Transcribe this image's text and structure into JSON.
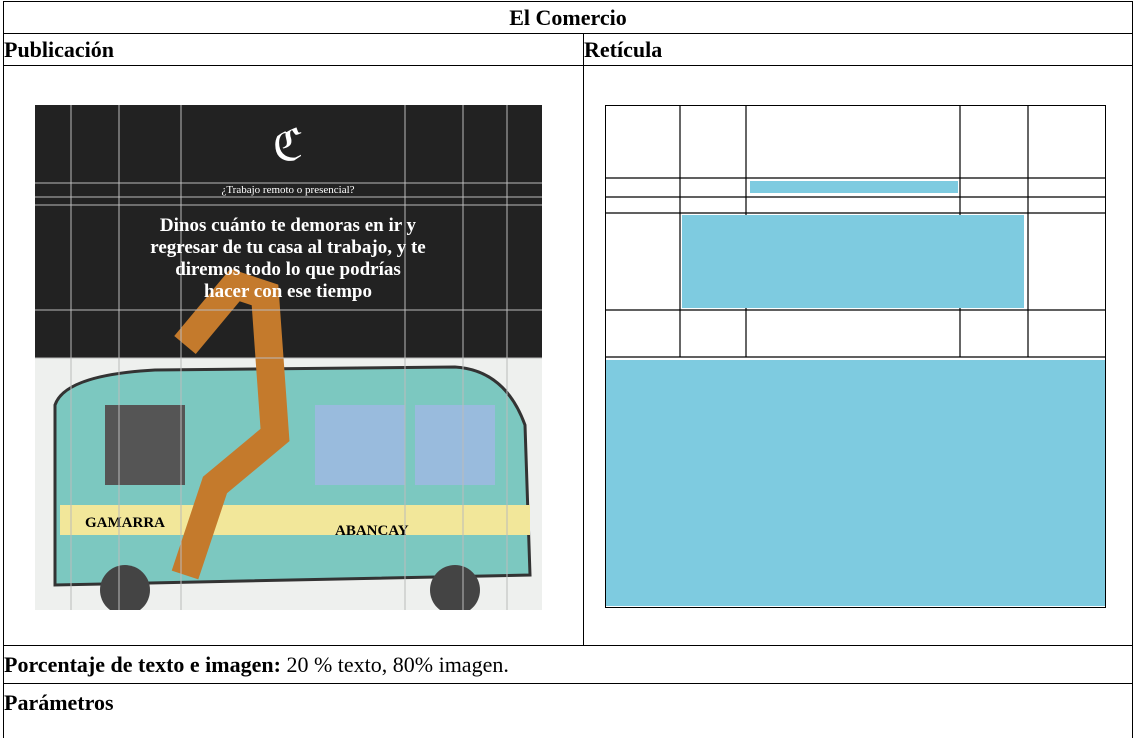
{
  "table": {
    "title": "El Comercio",
    "headers": [
      "Publicación",
      "Retícula"
    ],
    "publication": {
      "kicker": "¿Trabajo remoto o presencial?",
      "headline": [
        "Dinos cuánto te demoras en ir y",
        "regresar de tu casa al trabajo, y te",
        "diremos todo lo que podrías",
        "hacer con ese tiempo"
      ],
      "signs": [
        "GAMARRA",
        "ABANCAY"
      ]
    },
    "percentage": {
      "label": "Porcentaje de texto e imagen:",
      "text": " 20 % texto, 80% imagen."
    },
    "parameters": "Parámetros"
  }
}
